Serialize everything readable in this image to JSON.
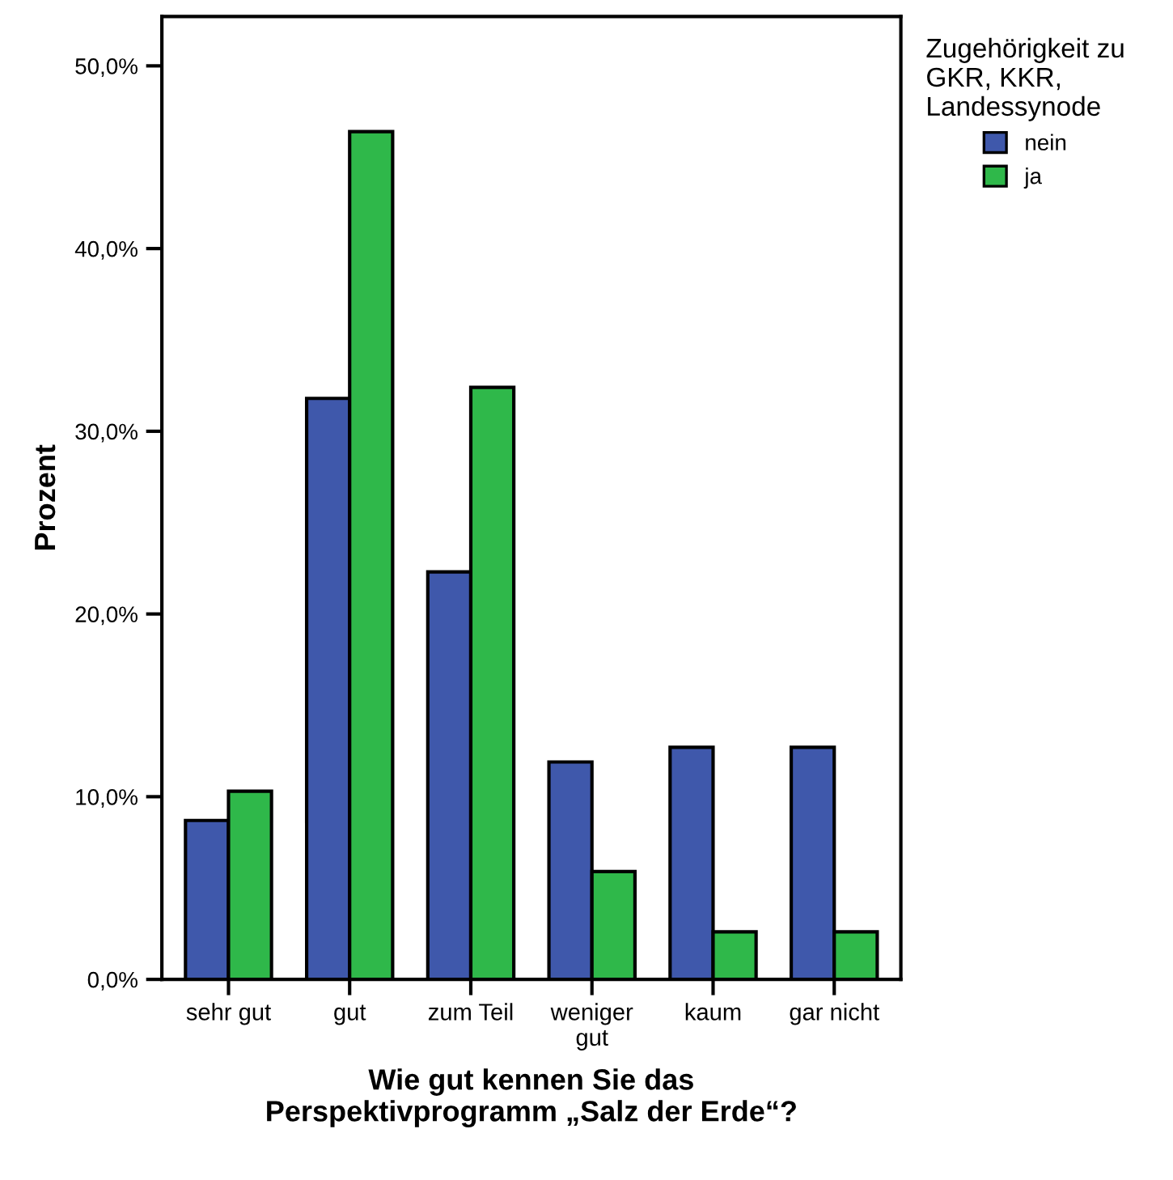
{
  "chart_data": {
    "type": "bar",
    "xlabel": "Wie gut kennen Sie das\nPerspektivprogramm „Salz der Erde“?",
    "ylabel": "Prozent",
    "legend_title": "Zugehörigkeit zu\nGKR, KKR,\nLandessynode",
    "categories": [
      "sehr gut",
      "gut",
      "zum Teil",
      "weniger gut",
      "kaum",
      "gar nicht"
    ],
    "series": [
      {
        "name": "nein",
        "color": "#3f58ab",
        "values": [
          8.7,
          31.8,
          22.3,
          11.9,
          12.7,
          12.7
        ]
      },
      {
        "name": "ja",
        "color": "#2fb84a",
        "values": [
          10.3,
          46.4,
          32.4,
          5.9,
          2.6,
          2.6
        ]
      }
    ],
    "ylim": [
      0,
      52.7
    ],
    "yticks": [
      {
        "value": 0,
        "label": "0,0%"
      },
      {
        "value": 10,
        "label": "10,0%"
      },
      {
        "value": 20,
        "label": "20,0%"
      },
      {
        "value": 30,
        "label": "30,0%"
      },
      {
        "value": 40,
        "label": "40,0%"
      },
      {
        "value": 50,
        "label": "50,0%"
      }
    ],
    "grid": false,
    "legend": "top right"
  }
}
